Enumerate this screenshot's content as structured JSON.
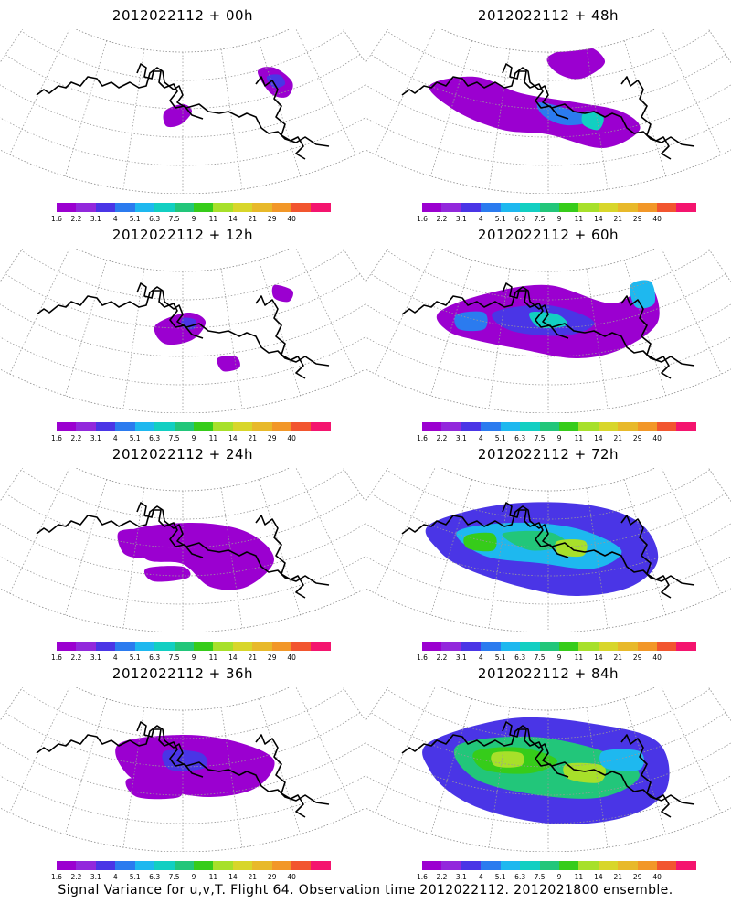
{
  "panels": [
    {
      "title": "2012022112 + 00h"
    },
    {
      "title": "2012022112 + 48h"
    },
    {
      "title": "2012022112 + 12h"
    },
    {
      "title": "2012022112 + 60h"
    },
    {
      "title": "2012022112 + 24h"
    },
    {
      "title": "2012022112 + 72h"
    },
    {
      "title": "2012022112 + 36h"
    },
    {
      "title": "2012022112 + 84h"
    }
  ],
  "colorbar": {
    "colors": [
      "#9b00d0",
      "#9228dc",
      "#4a35e6",
      "#2b7bef",
      "#1eb8ef",
      "#12cfc2",
      "#22c67a",
      "#36cc1a",
      "#a7e02a",
      "#d8d62a",
      "#e8b92a",
      "#f29728",
      "#f2552f",
      "#f4146e"
    ],
    "labels": [
      "1.6",
      "2.2",
      "3.1",
      "4",
      "5.1",
      "6.3",
      "7.5",
      "9",
      "11",
      "14",
      "21",
      "29",
      "40"
    ]
  },
  "footer": "Signal Variance for u,v,T. Flight 64. Observation time 2012022112. 2012021800 ensemble."
}
